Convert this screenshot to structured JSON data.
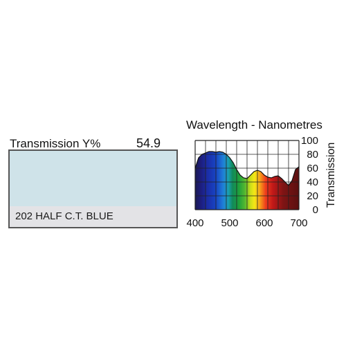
{
  "filter": {
    "transmission_label": "Transmission Y%",
    "transmission_value": "54.9",
    "swatch_color": "#cfe3e9",
    "name": "202 HALF C.T. BLUE"
  },
  "chart_data": {
    "type": "area",
    "title": "Wavelength - Nanometres",
    "xlabel": "",
    "ylabel": "Transmission",
    "xlim": [
      400,
      700
    ],
    "ylim": [
      0,
      100
    ],
    "grid": true,
    "x_ticks": [
      "400",
      "500",
      "600",
      "700"
    ],
    "y_ticks": [
      "0",
      "20",
      "40",
      "60",
      "80",
      "100"
    ],
    "series": [
      {
        "x": [
          400,
          410,
          420,
          430,
          440,
          450,
          460,
          470,
          480,
          490,
          500,
          510,
          520,
          530,
          540,
          550,
          560,
          570,
          580,
          590,
          600,
          610,
          620,
          630,
          640,
          650,
          660,
          670,
          680,
          690,
          700
        ],
        "values": [
          60,
          75,
          80,
          82,
          84,
          84,
          83,
          84,
          83,
          80,
          75,
          68,
          58,
          50,
          46,
          45,
          50,
          55,
          57,
          55,
          50,
          47,
          46,
          48,
          49,
          45,
          40,
          35,
          42,
          58,
          62
        ]
      }
    ]
  }
}
